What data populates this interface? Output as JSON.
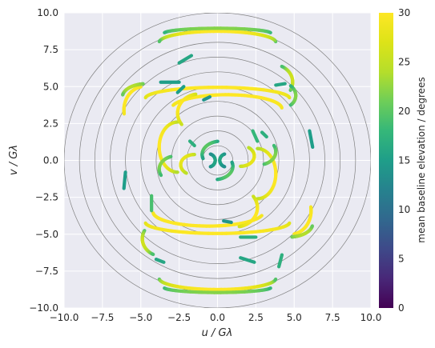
{
  "chart_data": {
    "type": "scatter",
    "title": "",
    "xlabel": "u / Gλ",
    "ylabel": "v / Gλ",
    "xlim": [
      -10,
      10
    ],
    "ylim": [
      -10,
      10
    ],
    "xticks": [
      "−10.0",
      "−7.5",
      "−5.0",
      "−2.5",
      "0.0",
      "2.5",
      "5.0",
      "7.5",
      "10.0"
    ],
    "yticks": [
      "−10.0",
      "−7.5",
      "−5.0",
      "−2.5",
      "0.0",
      "2.5",
      "5.0",
      "7.5",
      "10.0"
    ],
    "grid": true,
    "reference_circles_radius": [
      1,
      2,
      3,
      4,
      5,
      6,
      7,
      8,
      9,
      10
    ],
    "colorbar": {
      "label": "mean baseline elevation / degrees",
      "range": [
        0,
        30
      ],
      "ticks": [
        "0",
        "5",
        "10",
        "15",
        "20",
        "25",
        "30"
      ],
      "colormap": "viridis"
    },
    "tracks": [
      {
        "cx": 0,
        "cy": 8.0,
        "rx": 3.8,
        "ry": 0.75,
        "t0": 0.02,
        "t1": 0.98,
        "mid": 30,
        "edge": 18
      },
      {
        "cx": 0,
        "cy": 8.6,
        "rx": 3.5,
        "ry": 0.35,
        "t0": 0.05,
        "t1": 0.95,
        "mid": 22,
        "edge": 17
      },
      {
        "cx": 0,
        "cy": -8.0,
        "rx": 3.8,
        "ry": 0.75,
        "t0": 1.02,
        "t1": 1.98,
        "mid": 30,
        "edge": 18
      },
      {
        "cx": 0,
        "cy": -8.6,
        "rx": 3.5,
        "ry": 0.35,
        "t0": 1.05,
        "t1": 1.95,
        "mid": 22,
        "edge": 17
      },
      {
        "cx": 0,
        "cy": 4.2,
        "rx": 4.7,
        "ry": 0.75,
        "t0": 0.02,
        "t1": 0.98,
        "mid": 30,
        "edge": 27
      },
      {
        "cx": 0.6,
        "cy": 3.5,
        "rx": 3.6,
        "ry": 0.95,
        "t0": 0.02,
        "t1": 0.92,
        "mid": 30,
        "edge": 29
      },
      {
        "cx": 0,
        "cy": -4.2,
        "rx": 4.7,
        "ry": 0.75,
        "t0": 1.02,
        "t1": 1.98,
        "mid": 30,
        "edge": 27
      },
      {
        "cx": -0.6,
        "cy": -3.5,
        "rx": 3.6,
        "ry": 0.95,
        "t0": 1.02,
        "t1": 1.92,
        "mid": 30,
        "edge": 29
      },
      {
        "cx": -4.8,
        "cy": 3.4,
        "rx": 1.3,
        "ry": 1.6,
        "t0": 0.55,
        "t1": 1.05,
        "mid": 30,
        "edge": 29
      },
      {
        "cx": 4.8,
        "cy": -3.4,
        "rx": 1.3,
        "ry": 1.6,
        "t0": 1.55,
        "t1": 2.05,
        "mid": 30,
        "edge": 29
      },
      {
        "cx": 4.6,
        "cy": -4.3,
        "rx": 1.6,
        "ry": 0.9,
        "t0": 1.55,
        "t1": 1.95,
        "mid": 24,
        "edge": 20
      },
      {
        "cx": -4.6,
        "cy": 4.3,
        "rx": 1.6,
        "ry": 0.9,
        "t0": 0.55,
        "t1": 0.95,
        "mid": 24,
        "edge": 20
      },
      {
        "cx": -3.6,
        "cy": -5.3,
        "rx": 1.3,
        "ry": 1.2,
        "t0": 0.85,
        "t1": 1.35,
        "mid": 26,
        "edge": 18
      },
      {
        "cx": 3.6,
        "cy": 5.3,
        "rx": 1.3,
        "ry": 1.2,
        "t0": 1.85,
        "t1": 2.35,
        "mid": 26,
        "edge": 18
      },
      {
        "cx": 4.3,
        "cy": 4.4,
        "rx": 0.8,
        "ry": 0.8,
        "t0": 1.7,
        "t1": 2.3,
        "mid": 22,
        "edge": 17
      },
      {
        "cx": -2.6,
        "cy": 0.9,
        "rx": 1.2,
        "ry": 1.7,
        "t0": 0.5,
        "t1": 1.5,
        "mid": 30,
        "edge": 23
      },
      {
        "cx": 2.6,
        "cy": -0.9,
        "rx": 1.2,
        "ry": 1.7,
        "t0": 1.5,
        "t1": 2.5,
        "mid": 30,
        "edge": 23
      },
      {
        "cx": 2.7,
        "cy": 0.6,
        "rx": 1.1,
        "ry": 0.9,
        "t0": 1.6,
        "t1": 2.15,
        "mid": 22,
        "edge": 18
      },
      {
        "cx": -2.7,
        "cy": -0.6,
        "rx": 1.1,
        "ry": 0.9,
        "t0": 0.6,
        "t1": 1.15,
        "mid": 22,
        "edge": 18
      },
      {
        "cx": -1.2,
        "cy": 3.2,
        "rx": 1.4,
        "ry": 1.3,
        "t0": 0.55,
        "t1": 1.2,
        "mid": 30,
        "edge": 25
      },
      {
        "cx": 1.2,
        "cy": -3.2,
        "rx": 1.4,
        "ry": 1.3,
        "t0": 1.55,
        "t1": 2.2,
        "mid": 30,
        "edge": 25
      },
      {
        "cx": -1.5,
        "cy": -0.3,
        "rx": 0.9,
        "ry": 0.7,
        "t0": 0.5,
        "t1": 1.3,
        "mid": 28,
        "edge": 24
      },
      {
        "cx": 1.5,
        "cy": 0.3,
        "rx": 0.9,
        "ry": 0.7,
        "t0": 1.5,
        "t1": 2.3,
        "mid": 28,
        "edge": 24
      },
      {
        "cx": 0.2,
        "cy": 0.4,
        "rx": 1.2,
        "ry": 0.9,
        "t0": 0.55,
        "t1": 1.1,
        "mid": 20,
        "edge": 15
      },
      {
        "cx": -0.2,
        "cy": -0.4,
        "rx": 1.2,
        "ry": 0.9,
        "t0": 1.55,
        "t1": 2.1,
        "mid": 20,
        "edge": 15
      },
      {
        "cx": 0.6,
        "cy": 0,
        "rx": 0.45,
        "ry": 0.45,
        "t0": 0.6,
        "t1": 1.4,
        "mid": 16,
        "edge": 13
      },
      {
        "cx": -0.6,
        "cy": 0,
        "rx": 0.45,
        "ry": 0.45,
        "t0": 1.6,
        "t1": 2.4,
        "mid": 16,
        "edge": 13
      }
    ],
    "segments": [
      {
        "x0": 6.0,
        "y0": 2.0,
        "x1": 6.2,
        "y1": 0.9,
        "c": 15
      },
      {
        "x0": -6.0,
        "y0": -0.8,
        "x1": -6.1,
        "y1": -1.9,
        "c": 15
      },
      {
        "x0": -4.3,
        "y0": -2.4,
        "x1": -4.3,
        "y1": -3.4,
        "c": 19
      },
      {
        "x0": -3.7,
        "y0": 5.3,
        "x1": -2.5,
        "y1": 5.3,
        "c": 15
      },
      {
        "x0": -2.6,
        "y0": 4.6,
        "x1": -2.2,
        "y1": 5.0,
        "c": 15
      },
      {
        "x0": -0.9,
        "y0": 4.1,
        "x1": -0.5,
        "y1": 4.3,
        "c": 14
      },
      {
        "x0": 0.4,
        "y0": -4.1,
        "x1": 0.9,
        "y1": -4.2,
        "c": 14
      },
      {
        "x0": 2.5,
        "y0": -5.2,
        "x1": 1.5,
        "y1": -5.2,
        "c": 17
      },
      {
        "x0": 2.9,
        "y0": 1.9,
        "x1": 3.2,
        "y1": 1.6,
        "c": 17
      },
      {
        "x0": 2.3,
        "y0": 2.0,
        "x1": 2.6,
        "y1": 1.3,
        "c": 18
      },
      {
        "x0": -2.5,
        "y0": 6.6,
        "x1": -1.7,
        "y1": 7.1,
        "c": 16
      },
      {
        "x0": 1.5,
        "y0": -6.6,
        "x1": 2.4,
        "y1": -6.9,
        "c": 16
      },
      {
        "x0": 4.2,
        "y0": -6.4,
        "x1": 4.0,
        "y1": -7.2,
        "c": 17
      },
      {
        "x0": -4.0,
        "y0": -6.7,
        "x1": -3.5,
        "y1": -6.9,
        "c": 16
      },
      {
        "x0": 3.8,
        "y0": 5.1,
        "x1": 4.4,
        "y1": 5.2,
        "c": 16
      },
      {
        "x0": -1.8,
        "y0": 1.3,
        "x1": -1.5,
        "y1": 1.0,
        "c": 17
      }
    ]
  }
}
